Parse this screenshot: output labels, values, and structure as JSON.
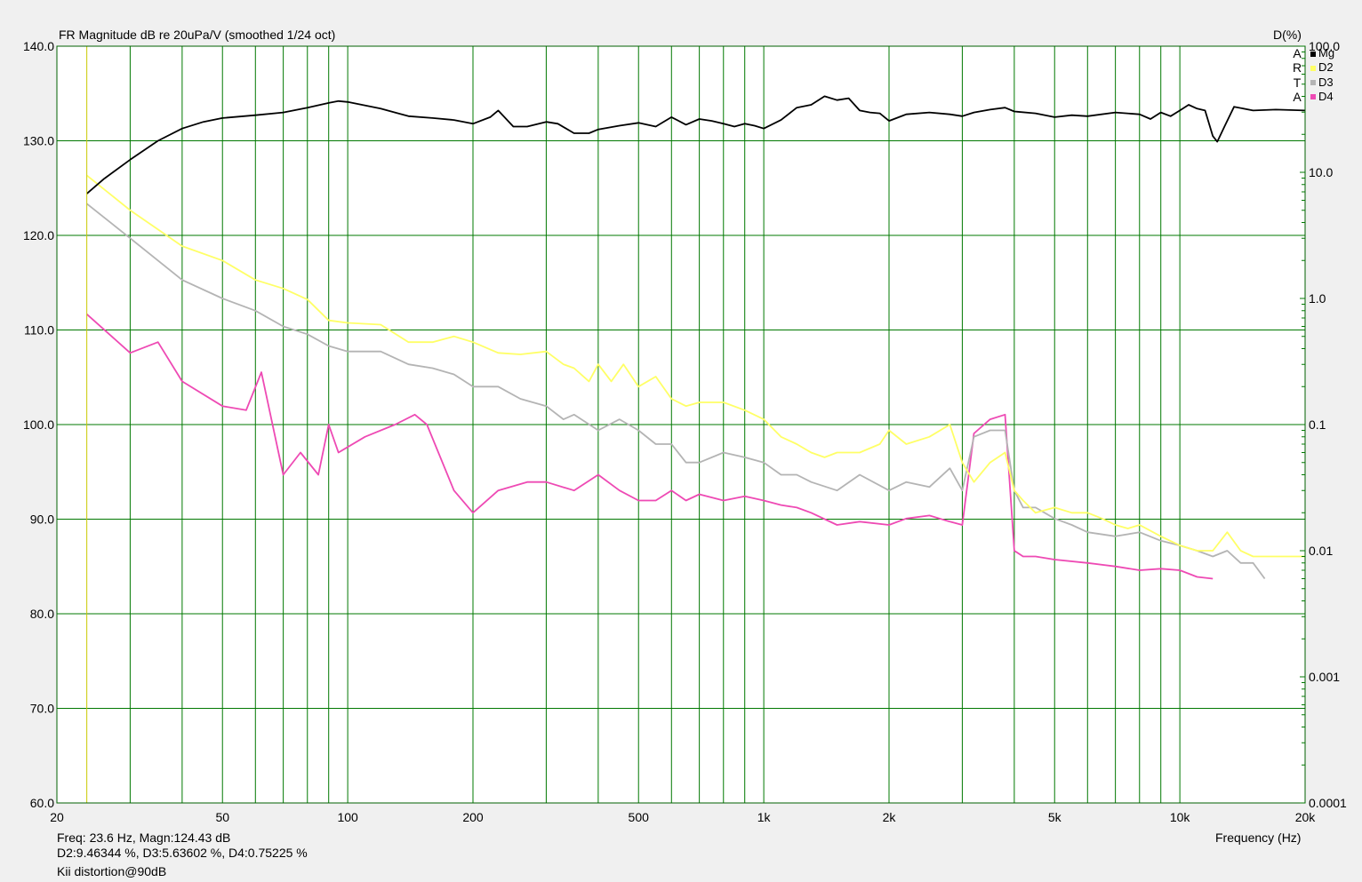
{
  "chart_data": {
    "type": "line",
    "title": "FR Magnitude dB re 20uPa/V (smoothed 1/24 oct)",
    "right_axis_title": "D(%)",
    "xlabel": "Frequency (Hz)",
    "x_scale": "log",
    "xlim": [
      20,
      20000
    ],
    "x_ticks": [
      20,
      50,
      100,
      200,
      500,
      1000,
      2000,
      5000,
      10000,
      20000
    ],
    "x_tick_labels": [
      "20",
      "50",
      "100",
      "200",
      "500",
      "1k",
      "2k",
      "5k",
      "10k",
      "20k"
    ],
    "y_left": {
      "lim": [
        60,
        140
      ],
      "ticks": [
        60,
        70,
        80,
        90,
        100,
        110,
        120,
        130,
        140
      ],
      "tick_labels": [
        "60.0",
        "70.0",
        "80.0",
        "90.0",
        "100.0",
        "110.0",
        "120.0",
        "130.0",
        "140.0"
      ]
    },
    "y_right": {
      "scale": "log",
      "lim": [
        0.0001,
        100
      ],
      "ticks": [
        0.0001,
        0.001,
        0.01,
        0.1,
        1,
        10,
        100
      ],
      "tick_labels": [
        "0.0001",
        "0.001",
        "0.01",
        "0.1",
        "1.0",
        "10.0",
        "100.0"
      ]
    },
    "grid": true,
    "legend_side_text": [
      "A",
      "R",
      "T",
      "A"
    ],
    "series": [
      {
        "name": "Mg",
        "color": "#000000",
        "unit": "dB",
        "x": [
          23.6,
          26,
          30,
          35,
          40,
          45,
          50,
          60,
          70,
          80,
          90,
          95,
          100,
          120,
          140,
          160,
          180,
          200,
          220,
          230,
          250,
          270,
          300,
          320,
          350,
          380,
          400,
          450,
          500,
          550,
          600,
          650,
          700,
          750,
          800,
          850,
          900,
          950,
          1000,
          1100,
          1200,
          1300,
          1400,
          1500,
          1600,
          1700,
          1800,
          1900,
          2000,
          2200,
          2500,
          2800,
          3000,
          3200,
          3500,
          3800,
          4000,
          4500,
          5000,
          5500,
          6000,
          7000,
          8000,
          8500,
          9000,
          9500,
          10000,
          10500,
          11000,
          11500,
          12000,
          12300,
          12800,
          13500,
          15000,
          17000,
          20000
        ],
        "y": [
          124.4,
          126,
          128,
          130,
          131.3,
          132,
          132.4,
          132.7,
          133,
          133.5,
          134,
          134.2,
          134.1,
          133.4,
          132.6,
          132.4,
          132.2,
          131.8,
          132.5,
          133.2,
          131.5,
          131.5,
          132,
          131.8,
          130.8,
          130.8,
          131.2,
          131.6,
          131.9,
          131.5,
          132.5,
          131.7,
          132.3,
          132.1,
          131.8,
          131.5,
          131.8,
          131.6,
          131.3,
          132.2,
          133.5,
          133.8,
          134.7,
          134.3,
          134.5,
          133.2,
          133,
          132.9,
          132.1,
          132.8,
          133,
          132.8,
          132.6,
          133,
          133.3,
          133.5,
          133.1,
          132.9,
          132.5,
          132.7,
          132.6,
          133,
          132.8,
          132.3,
          133,
          132.6,
          133.2,
          133.8,
          133.4,
          133.2,
          130.5,
          129.9,
          131.5,
          133.6,
          133.2,
          133.3,
          133.2
        ]
      },
      {
        "name": "D2",
        "color": "#ffff66",
        "unit": "%",
        "x": [
          23.6,
          30,
          40,
          50,
          60,
          70,
          80,
          90,
          100,
          120,
          140,
          160,
          180,
          200,
          230,
          260,
          300,
          330,
          350,
          380,
          400,
          430,
          460,
          500,
          550,
          600,
          650,
          700,
          800,
          900,
          1000,
          1100,
          1200,
          1300,
          1400,
          1500,
          1700,
          1900,
          2000,
          2200,
          2500,
          2800,
          3000,
          3200,
          3500,
          3800,
          4000,
          4200,
          4500,
          5000,
          5500,
          6000,
          6500,
          7000,
          7500,
          8000,
          9000,
          10000,
          11000,
          12000,
          13000,
          14000,
          15000,
          17000,
          20000
        ],
        "y": [
          9.46,
          5.0,
          2.6,
          2.0,
          1.4,
          1.2,
          0.98,
          0.67,
          0.64,
          0.62,
          0.45,
          0.45,
          0.5,
          0.45,
          0.37,
          0.36,
          0.38,
          0.3,
          0.28,
          0.22,
          0.3,
          0.22,
          0.3,
          0.2,
          0.24,
          0.16,
          0.14,
          0.15,
          0.15,
          0.13,
          0.11,
          0.08,
          0.07,
          0.06,
          0.055,
          0.06,
          0.06,
          0.07,
          0.09,
          0.07,
          0.08,
          0.1,
          0.05,
          0.035,
          0.05,
          0.06,
          0.03,
          0.025,
          0.02,
          0.022,
          0.02,
          0.02,
          0.018,
          0.016,
          0.015,
          0.016,
          0.013,
          0.011,
          0.01,
          0.01,
          0.014,
          0.01,
          0.009,
          0.009,
          0.009
        ]
      },
      {
        "name": "D3",
        "color": "#b4b4b4",
        "unit": "%",
        "x": [
          23.6,
          30,
          40,
          50,
          60,
          70,
          80,
          90,
          100,
          120,
          140,
          160,
          180,
          200,
          230,
          260,
          300,
          330,
          350,
          400,
          450,
          500,
          550,
          600,
          650,
          700,
          800,
          900,
          1000,
          1100,
          1200,
          1300,
          1500,
          1700,
          2000,
          2200,
          2500,
          2800,
          3000,
          3200,
          3500,
          3800,
          4000,
          4200,
          4500,
          5000,
          5500,
          6000,
          7000,
          8000,
          9000,
          10000,
          11000,
          12000,
          13000,
          14000,
          15000,
          16000
        ],
        "y": [
          5.64,
          3.0,
          1.4,
          1.0,
          0.8,
          0.6,
          0.52,
          0.42,
          0.38,
          0.38,
          0.3,
          0.28,
          0.25,
          0.2,
          0.2,
          0.16,
          0.14,
          0.11,
          0.12,
          0.09,
          0.11,
          0.09,
          0.07,
          0.07,
          0.05,
          0.05,
          0.06,
          0.055,
          0.05,
          0.04,
          0.04,
          0.035,
          0.03,
          0.04,
          0.03,
          0.035,
          0.032,
          0.045,
          0.03,
          0.08,
          0.09,
          0.09,
          0.03,
          0.022,
          0.022,
          0.018,
          0.016,
          0.014,
          0.013,
          0.014,
          0.012,
          0.011,
          0.01,
          0.009,
          0.01,
          0.008,
          0.008,
          0.006
        ]
      },
      {
        "name": "D4",
        "color": "#ee4ab4",
        "unit": "%",
        "x": [
          23.6,
          30,
          35,
          40,
          50,
          57,
          62,
          70,
          77,
          85,
          90,
          95,
          110,
          130,
          145,
          155,
          180,
          200,
          230,
          270,
          300,
          350,
          400,
          450,
          500,
          550,
          600,
          650,
          700,
          800,
          900,
          1000,
          1100,
          1200,
          1300,
          1500,
          1700,
          2000,
          2200,
          2500,
          2800,
          3000,
          3200,
          3500,
          3800,
          4000,
          4200,
          4500,
          5000,
          6000,
          7000,
          8000,
          9000,
          10000,
          11000,
          12000
        ],
        "y": [
          0.75,
          0.37,
          0.45,
          0.22,
          0.14,
          0.13,
          0.26,
          0.04,
          0.06,
          0.04,
          0.1,
          0.06,
          0.08,
          0.1,
          0.12,
          0.1,
          0.03,
          0.02,
          0.03,
          0.035,
          0.035,
          0.03,
          0.04,
          0.03,
          0.025,
          0.025,
          0.03,
          0.025,
          0.028,
          0.025,
          0.027,
          0.025,
          0.023,
          0.022,
          0.02,
          0.016,
          0.017,
          0.016,
          0.018,
          0.019,
          0.017,
          0.016,
          0.085,
          0.11,
          0.12,
          0.01,
          0.009,
          0.009,
          0.0085,
          0.008,
          0.0075,
          0.007,
          0.0072,
          0.007,
          0.0062,
          0.006
        ]
      }
    ]
  },
  "readout": {
    "line1": "Freq: 23.6 Hz, Magn:124.43 dB",
    "line2": "D2:9.46344 %, D3:5.63602 %, D4:0.75225 %",
    "line3": "Kii distortion@90dB"
  },
  "cursor_freq": 23.6,
  "cursor_color": "#c8c800",
  "grid_color": "#007800",
  "plot_bg": "#ffffff"
}
